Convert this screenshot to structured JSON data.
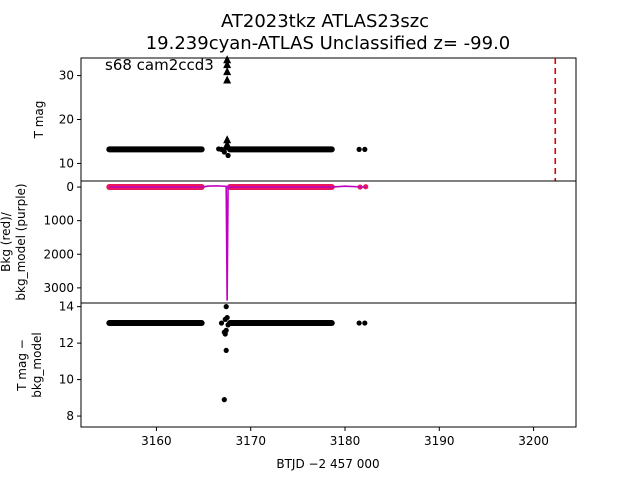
{
  "chart_data": [
    {
      "type": "scatter",
      "panel": "top",
      "title_line1": "AT2023tkz  ATLAS23szc",
      "title_line2": "19.239cyan-ATLAS Unclassified z= -99.0",
      "ylabel": "T mag",
      "annotation": "s68 cam2ccd3",
      "ylim": [
        34,
        6
      ],
      "yticks": [
        10,
        20,
        30
      ],
      "series": [
        {
          "type": "dense-band",
          "x_range": [
            3155.0,
            3164.8
          ],
          "y": 13.2,
          "color": "#000000"
        },
        {
          "type": "dense-band",
          "x_range": [
            3167.8,
            3178.6
          ],
          "y": 13.2,
          "color": "#000000"
        },
        {
          "type": "points",
          "x": [
            3166.6,
            3166.9,
            3167.2,
            3167.4,
            3167.6,
            3181.5,
            3182.1
          ],
          "y": [
            13.3,
            13.2,
            12.6,
            13.6,
            11.8,
            13.2,
            13.2
          ],
          "color": "#000000"
        },
        {
          "type": "triangles",
          "x": [
            3167.5,
            3167.5,
            3167.5,
            3167.5,
            3167.5,
            3167.5
          ],
          "y": [
            14.3,
            15.4,
            29.0,
            30.9,
            32.5,
            33.6
          ],
          "color": "#000000"
        }
      ],
      "vline": {
        "x": 3202.3,
        "color": "#dd0000",
        "style": "dashed"
      }
    },
    {
      "type": "line",
      "panel": "middle",
      "ylabel": "Bkg (red)/ bkg_model (purple)",
      "ylim": [
        -180,
        3450
      ],
      "yticks": [
        0,
        1000,
        2000,
        3000
      ],
      "series": [
        {
          "type": "dense-band",
          "x_range": [
            3155.0,
            3164.8
          ],
          "y": 0,
          "color": "#e8185a"
        },
        {
          "type": "dense-band",
          "x_range": [
            3167.8,
            3178.6
          ],
          "y": 0,
          "color": "#e8185a"
        },
        {
          "type": "points",
          "x": [
            3181.6,
            3182.2
          ],
          "y": [
            0,
            -10
          ],
          "color": "#e8185a"
        },
        {
          "type": "model-line",
          "x": [
            3155.0,
            3164.8,
            3165.5,
            3166.5,
            3167.4,
            3167.5,
            3167.6,
            3168.0,
            3178.6,
            3180.0,
            3181.6,
            3182.2
          ],
          "y": [
            0,
            0,
            -30,
            -35,
            -20,
            3380,
            -20,
            0,
            0,
            -25,
            -5,
            0
          ],
          "color": "#c000c0"
        }
      ]
    },
    {
      "type": "scatter",
      "panel": "bottom",
      "ylabel": "T mag − bkg_model",
      "xlabel": "BTJD −2 457 000",
      "xlim": [
        3152.0,
        3204.5
      ],
      "xticks": [
        3160,
        3170,
        3180,
        3190,
        3200
      ],
      "ylim": [
        14.2,
        7.4
      ],
      "yticks": [
        8,
        10,
        12,
        14
      ],
      "series": [
        {
          "type": "dense-band",
          "x_range": [
            3155.0,
            3164.8
          ],
          "y": 13.1,
          "color": "#000000"
        },
        {
          "type": "dense-band",
          "x_range": [
            3167.8,
            3178.6
          ],
          "y": 13.1,
          "color": "#000000"
        },
        {
          "type": "points",
          "x": [
            3167.2,
            3167.4,
            3167.3,
            3167.2,
            3167.4,
            3167.6,
            3167.3,
            3167.5,
            3166.9,
            3181.5,
            3182.1
          ],
          "y": [
            8.9,
            11.6,
            12.5,
            12.6,
            12.7,
            13.0,
            13.3,
            13.4,
            13.1,
            13.1,
            13.1
          ],
          "color": "#000000"
        },
        {
          "type": "points",
          "x": [
            3167.4
          ],
          "y": [
            14.0
          ],
          "color": "#000000"
        }
      ]
    }
  ]
}
